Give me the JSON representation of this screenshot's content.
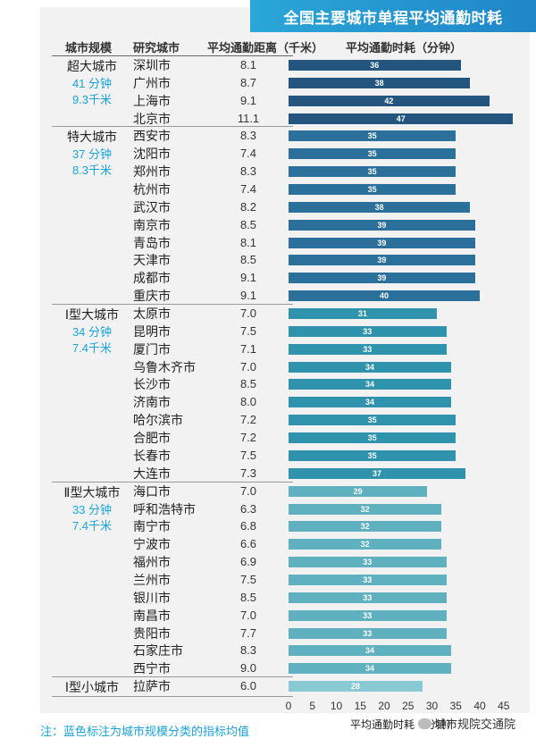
{
  "title": "全国主要城市单程平均通勤时耗",
  "headers": {
    "scale": "城市规模",
    "city": "研究城市",
    "distance": "平均通勤距离（千米）",
    "time": "平均通勤时耗（分钟）"
  },
  "groups": [
    {
      "name": "超大城市",
      "avg_time": "41 分钟",
      "avg_dist": "9.3千米"
    },
    {
      "name": "特大城市",
      "avg_time": "37 分钟",
      "avg_dist": "8.3千米"
    },
    {
      "name": "Ⅰ型大城市",
      "avg_time": "34 分钟",
      "avg_dist": "7.4千米"
    },
    {
      "name": "Ⅱ型大城市",
      "avg_time": "33 分钟",
      "avg_dist": "7.4千米"
    },
    {
      "name": "Ⅰ型小城市",
      "avg_time": "",
      "avg_dist": ""
    }
  ],
  "chart_data": {
    "type": "bar",
    "orientation": "horizontal",
    "title": "全国主要城市单程平均通勤时耗",
    "xlabel": "平均通勤时耗（分钟）",
    "xlim": [
      0,
      47
    ],
    "xticks": [
      "0",
      "5",
      "10",
      "15",
      "20",
      "25",
      "30",
      "35",
      "40",
      "45"
    ],
    "categories": [
      "深圳市",
      "广州市",
      "上海市",
      "北京市",
      "西安市",
      "沈阳市",
      "郑州市",
      "杭州市",
      "武汉市",
      "南京市",
      "青岛市",
      "天津市",
      "成都市",
      "重庆市",
      "太原市",
      "昆明市",
      "厦门市",
      "乌鲁木齐市",
      "长沙市",
      "济南市",
      "哈尔滨市",
      "合肥市",
      "长春市",
      "大连市",
      "海口市",
      "呼和浩特市",
      "南宁市",
      "宁波市",
      "福州市",
      "兰州市",
      "银川市",
      "南昌市",
      "贵阳市",
      "石家庄市",
      "西宁市",
      "拉萨市"
    ],
    "distances": [
      "8.1",
      "8.7",
      "9.1",
      "11.1",
      "8.3",
      "7.4",
      "8.3",
      "7.4",
      "8.2",
      "8.5",
      "8.1",
      "8.5",
      "9.1",
      "9.1",
      "7.0",
      "7.5",
      "7.1",
      "7.0",
      "8.5",
      "8.0",
      "7.2",
      "7.2",
      "7.5",
      "7.3",
      "7.0",
      "6.3",
      "6.8",
      "6.6",
      "6.9",
      "7.5",
      "8.5",
      "7.0",
      "7.7",
      "8.3",
      "9.0",
      "6.0"
    ],
    "values": [
      36,
      38,
      42,
      47,
      35,
      35,
      35,
      35,
      38,
      39,
      39,
      39,
      39,
      40,
      31,
      33,
      33,
      34,
      34,
      34,
      35,
      35,
      35,
      37,
      29,
      32,
      32,
      32,
      33,
      33,
      33,
      33,
      33,
      34,
      34,
      28
    ],
    "group_index": [
      0,
      0,
      0,
      0,
      1,
      1,
      1,
      1,
      1,
      1,
      1,
      1,
      1,
      1,
      2,
      2,
      2,
      2,
      2,
      2,
      2,
      2,
      2,
      2,
      3,
      3,
      3,
      3,
      3,
      3,
      3,
      3,
      3,
      3,
      3,
      4
    ],
    "group_colors": [
      "#24557f",
      "#2b6f9b",
      "#2f93ad",
      "#5fb1c0",
      "#89c9d3"
    ]
  },
  "footnote": "注：蓝色标注为城市规模分类的指标均值",
  "watermark": "城市规院交通院"
}
